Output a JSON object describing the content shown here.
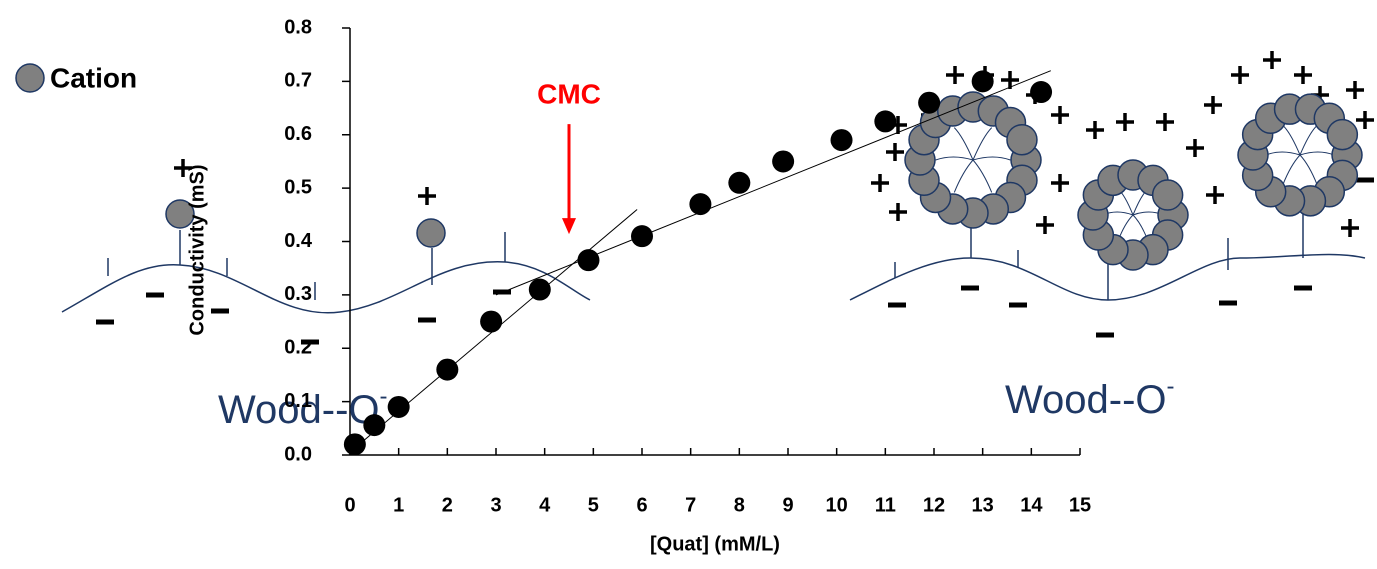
{
  "chart_data": {
    "type": "scatter",
    "x_label": "[Quat] (mM/L)",
    "y_label": "Conductivity (mS)",
    "x": [
      0.1,
      0.5,
      1.0,
      2.0,
      2.9,
      3.9,
      4.9,
      6.0,
      7.2,
      8.0,
      8.9,
      10.1,
      11.0,
      11.9,
      13.0,
      14.2
    ],
    "values": [
      0.02,
      0.056,
      0.09,
      0.16,
      0.25,
      0.31,
      0.365,
      0.41,
      0.47,
      0.51,
      0.55,
      0.59,
      0.625,
      0.66,
      0.7,
      0.68
    ],
    "color": "#000000",
    "fit_lines": [
      {
        "x": [
          0.1,
          5.9
        ],
        "values": [
          0.013,
          0.46
        ]
      },
      {
        "x": [
          3.0,
          14.4
        ],
        "values": [
          0.3,
          0.72
        ]
      }
    ],
    "xlim": [
      0,
      15
    ],
    "ylim": [
      0,
      0.8
    ],
    "xticks": [
      0,
      1,
      2,
      3,
      4,
      5,
      6,
      7,
      8,
      9,
      10,
      11,
      12,
      13,
      14,
      15
    ],
    "yticks": [
      {
        "value": 0,
        "label": "0.0"
      },
      0.1,
      0.2,
      0.3,
      0.4,
      0.5,
      0.6,
      0.7,
      0.8
    ],
    "annotation": {
      "text": "CMC",
      "x": 4.5,
      "y": 0.41,
      "color": "#ff0000"
    }
  },
  "diagram": {
    "legend": {
      "label": "Cation",
      "color": "#808080"
    },
    "surface_labels": [
      {
        "text": "Wood--O",
        "superscript": "-"
      },
      {
        "text": "Wood--O",
        "superscript": "-"
      }
    ]
  }
}
